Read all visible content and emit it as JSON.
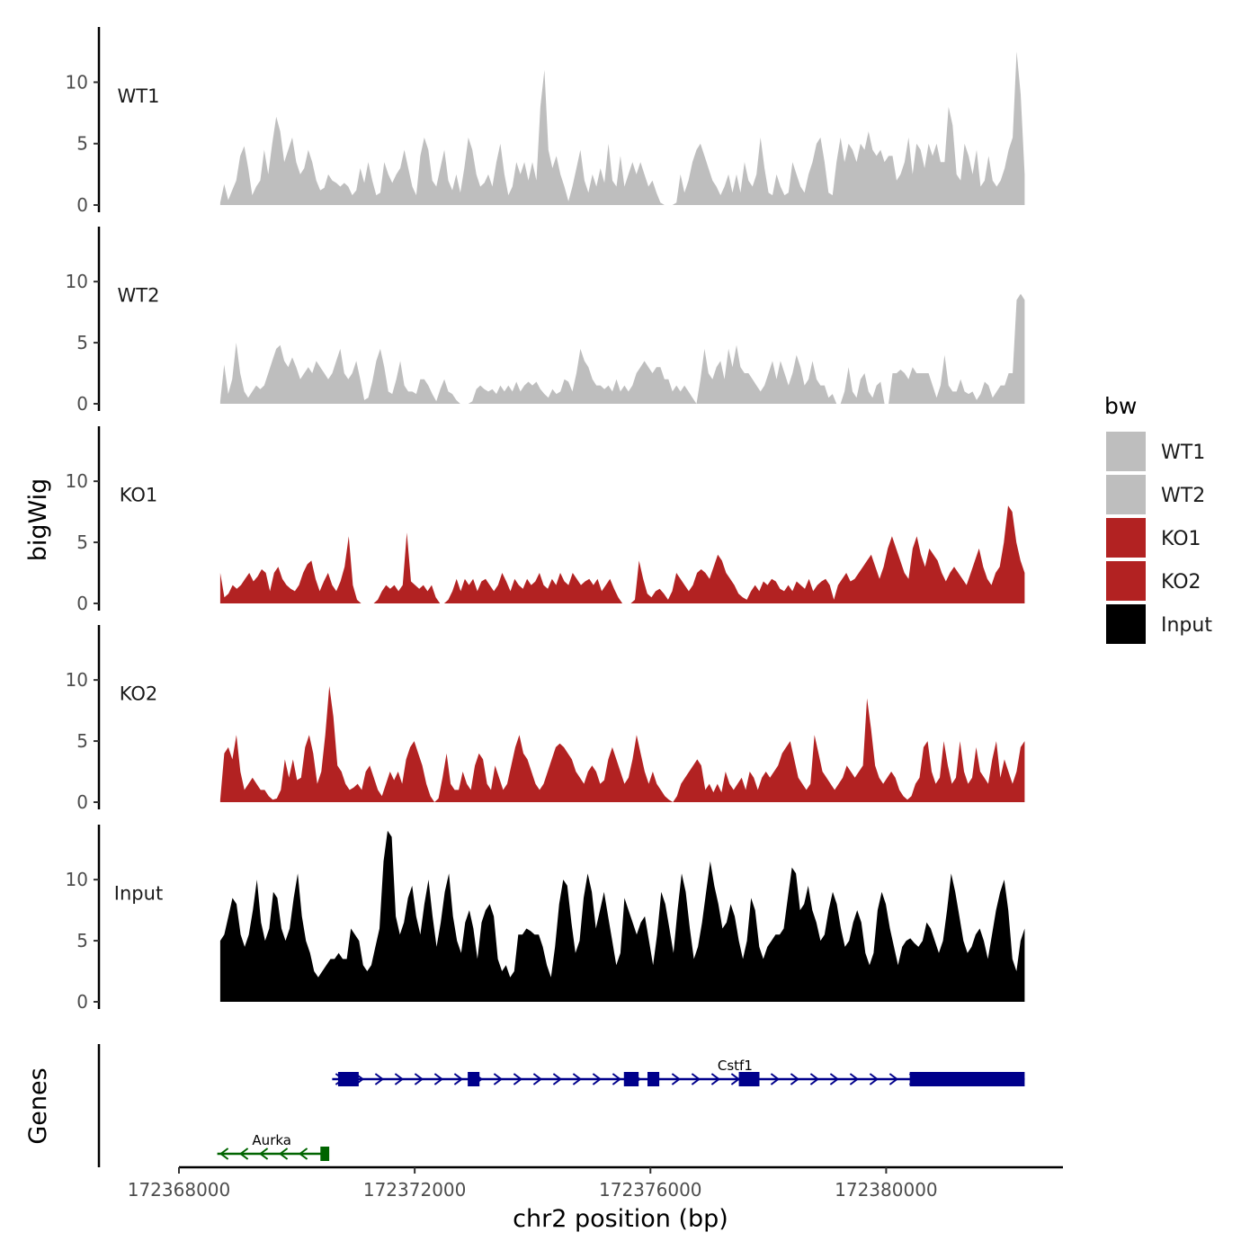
{
  "chart_data": {
    "type": "area",
    "ylabel": "bigWig",
    "xlabel": "chr2 position (bp)",
    "genes_label": "Genes",
    "xlim": [
      172368000,
      172383000
    ],
    "x_ticks": [
      172368000,
      172372000,
      172376000,
      172380000
    ],
    "x_tick_labels": [
      "172368000",
      "172372000",
      "172376000",
      "172380000"
    ],
    "ylim": [
      0,
      14.5
    ],
    "y_ticks": [
      0,
      5,
      10
    ],
    "y_tick_labels": [
      "0",
      "5",
      "10"
    ],
    "track_start": 172368700,
    "track_end": 172382350,
    "legend": {
      "title": "bw",
      "entries": [
        {
          "label": "WT1",
          "color": "#bebebe"
        },
        {
          "label": "WT2",
          "color": "#bebebe"
        },
        {
          "label": "KO1",
          "color": "#b22222"
        },
        {
          "label": "KO2",
          "color": "#b22222"
        },
        {
          "label": "Input",
          "color": "#000000"
        }
      ]
    },
    "series": [
      {
        "name": "WT1",
        "color": "#bebebe",
        "values": [
          0.2,
          1.7,
          0.4,
          1.2,
          2.0,
          4.0,
          4.8,
          3.0,
          0.8,
          1.5,
          2.0,
          4.5,
          2.5,
          5.0,
          7.2,
          6.0,
          3.5,
          4.5,
          5.5,
          3.5,
          2.5,
          3.0,
          4.5,
          3.5,
          2.0,
          1.2,
          1.4,
          2.5,
          2.0,
          1.8,
          1.5,
          1.8,
          1.5,
          0.8,
          1.2,
          3.0,
          1.8,
          3.5,
          2.0,
          0.8,
          1.0,
          3.5,
          2.5,
          1.8,
          2.5,
          3.0,
          4.5,
          3.0,
          1.5,
          0.8,
          4.0,
          5.5,
          4.5,
          2.0,
          1.5,
          3.0,
          4.5,
          2.0,
          1.2,
          2.5,
          1.0,
          3.0,
          5.5,
          4.5,
          2.5,
          1.5,
          1.8,
          2.5,
          1.5,
          3.5,
          5.0,
          2.5,
          0.8,
          1.5,
          3.5,
          2.5,
          3.5,
          2.0,
          3.5,
          2.0,
          8.0,
          11.0,
          4.5,
          3.0,
          4.0,
          2.5,
          1.5,
          0.3,
          1.5,
          3.0,
          4.5,
          2.0,
          1.0,
          2.5,
          1.5,
          3.0,
          1.8,
          5.0,
          2.0,
          1.5,
          4.0,
          1.5,
          2.5,
          3.5,
          2.5,
          3.5,
          2.5,
          1.5,
          2.0,
          1.0,
          0.2,
          0,
          0,
          0,
          0.2,
          2.5,
          1.0,
          2.0,
          3.5,
          4.5,
          5.0,
          4.0,
          3.0,
          2.0,
          1.5,
          0.8,
          1.5,
          2.5,
          1.0,
          2.5,
          1.0,
          3.5,
          2.0,
          1.5,
          2.5,
          5.5,
          3.0,
          1.0,
          0.8,
          2.5,
          1.5,
          0.8,
          1.0,
          3.5,
          2.5,
          1.5,
          1.0,
          2.5,
          3.5,
          5.0,
          5.5,
          3.5,
          1.0,
          0.8,
          3.5,
          5.5,
          3.5,
          5.0,
          4.5,
          3.5,
          5.0,
          4.5,
          6.0,
          4.5,
          4.0,
          4.5,
          3.5,
          4.0,
          4.0,
          2.0,
          2.5,
          3.5,
          5.5,
          2.5,
          5.0,
          4.5,
          3.0,
          5.0,
          4.0,
          5.0,
          3.5,
          3.5,
          8.0,
          6.5,
          2.5,
          2.0,
          5.0,
          4.0,
          2.5,
          4.5,
          1.5,
          2.0,
          4.0,
          2.0,
          1.5,
          2.0,
          3.0,
          4.5,
          5.5,
          12.5,
          9.0,
          2.5
        ]
      },
      {
        "name": "WT2",
        "color": "#bebebe",
        "values": [
          0.2,
          3.2,
          0.8,
          2.0,
          5.0,
          2.5,
          1.0,
          0.5,
          1.0,
          1.5,
          1.2,
          1.5,
          2.5,
          3.5,
          4.5,
          4.8,
          3.5,
          3.0,
          3.8,
          3.0,
          2.0,
          2.5,
          3.0,
          2.5,
          3.5,
          3.0,
          2.5,
          2.0,
          2.5,
          3.5,
          4.5,
          2.5,
          2.0,
          2.5,
          3.5,
          2.0,
          0.3,
          0.5,
          1.8,
          3.5,
          4.5,
          3.0,
          1.0,
          0.8,
          2.0,
          3.5,
          1.5,
          1.0,
          1.0,
          0.8,
          2.0,
          2.0,
          1.5,
          0.8,
          0.2,
          1.2,
          2.0,
          1.0,
          0.8,
          0.3,
          0,
          0,
          0,
          0.2,
          1.2,
          1.5,
          1.2,
          1.0,
          1.2,
          0.8,
          1.5,
          1.0,
          1.5,
          1.0,
          1.8,
          1.0,
          1.5,
          1.8,
          1.5,
          1.8,
          1.2,
          0.8,
          0.5,
          1.2,
          0.8,
          1.0,
          2.0,
          1.8,
          1.0,
          2.5,
          4.5,
          3.5,
          3.0,
          2.0,
          1.5,
          1.5,
          1.2,
          1.5,
          1.0,
          2.0,
          1.0,
          1.5,
          1.0,
          1.5,
          2.5,
          3.0,
          3.5,
          3.0,
          2.5,
          3.0,
          3.0,
          2.0,
          2.0,
          1.0,
          1.5,
          1.0,
          1.5,
          1.0,
          0.5,
          0,
          2.0,
          4.5,
          2.5,
          2.0,
          3.0,
          3.5,
          2.0,
          4.5,
          3.0,
          4.8,
          3.0,
          2.5,
          2.5,
          2.0,
          1.5,
          1.0,
          1.5,
          2.5,
          3.5,
          2.0,
          3.5,
          2.5,
          1.5,
          2.5,
          4.0,
          3.0,
          1.5,
          2.0,
          3.5,
          2.0,
          1.5,
          1.5,
          0.5,
          0.8,
          0,
          0,
          1.0,
          3.0,
          1.0,
          0.5,
          2.0,
          2.5,
          1.0,
          0.5,
          1.5,
          1.8,
          0,
          0,
          2.5,
          2.5,
          2.8,
          2.5,
          2.0,
          3.0,
          2.5,
          2.5,
          2.5,
          2.5,
          1.5,
          0.5,
          1.5,
          4.0,
          1.5,
          1.0,
          1.0,
          2.0,
          1.0,
          0.8,
          1.0,
          0.3,
          0.8,
          1.8,
          1.5,
          0.5,
          1.0,
          1.5,
          1.5,
          2.5,
          2.5,
          8.5,
          9.0,
          8.5
        ]
      },
      {
        "name": "KO1",
        "color": "#b22222",
        "values": [
          2.5,
          0.5,
          0.8,
          1.5,
          1.2,
          1.5,
          2.0,
          2.5,
          1.8,
          2.2,
          2.8,
          2.5,
          1.0,
          2.5,
          3.0,
          2.0,
          1.5,
          1.2,
          1.0,
          1.5,
          2.5,
          3.2,
          3.5,
          2.0,
          1.0,
          1.8,
          2.5,
          1.5,
          1.0,
          1.8,
          3.0,
          5.5,
          1.5,
          0.3,
          0,
          0,
          0,
          0,
          0.3,
          1.0,
          1.5,
          1.2,
          1.5,
          1.0,
          1.5,
          5.8,
          1.8,
          1.5,
          1.2,
          1.5,
          1.0,
          1.5,
          0.5,
          0,
          0,
          0.3,
          1.0,
          2.0,
          1.0,
          2.0,
          1.5,
          2.0,
          1.0,
          1.8,
          2.0,
          1.5,
          1.0,
          1.5,
          2.5,
          1.8,
          1.0,
          2.0,
          1.5,
          1.2,
          2.0,
          1.5,
          1.8,
          2.5,
          1.5,
          1.2,
          2.0,
          1.5,
          2.5,
          1.8,
          1.5,
          2.5,
          2.0,
          1.5,
          1.8,
          2.0,
          1.5,
          2.0,
          1.0,
          1.5,
          2.0,
          1.2,
          0.5,
          0,
          0,
          0,
          0.3,
          3.5,
          2.0,
          0.8,
          0.5,
          1.0,
          1.2,
          0.8,
          0.3,
          1.0,
          2.5,
          2.0,
          1.5,
          1.0,
          1.5,
          2.5,
          2.8,
          2.5,
          2.0,
          3.0,
          4.0,
          3.5,
          2.5,
          2.0,
          1.5,
          0.8,
          0.5,
          0.3,
          1.0,
          1.5,
          1.0,
          1.8,
          1.5,
          2.0,
          1.8,
          1.2,
          1.0,
          1.5,
          1.0,
          1.8,
          1.5,
          1.2,
          2.0,
          1.0,
          1.5,
          1.8,
          2.0,
          1.5,
          0.3,
          1.5,
          2.0,
          2.5,
          1.8,
          2.0,
          2.5,
          3.0,
          3.5,
          4.0,
          3.0,
          2.0,
          3.0,
          4.5,
          5.5,
          4.5,
          3.5,
          2.5,
          2.0,
          4.5,
          5.5,
          4.0,
          3.0,
          4.5,
          4.0,
          3.5,
          2.5,
          1.8,
          2.5,
          3.0,
          2.5,
          2.0,
          1.5,
          2.5,
          3.5,
          4.5,
          3.0,
          2.0,
          1.5,
          2.5,
          3.0,
          5.0,
          8.0,
          7.5,
          5.0,
          3.5,
          2.5
        ]
      },
      {
        "name": "KO2",
        "color": "#b22222",
        "values": [
          0.2,
          4.0,
          4.5,
          3.5,
          5.5,
          2.5,
          1.0,
          1.5,
          2.0,
          1.5,
          1.0,
          1.0,
          0.5,
          0.2,
          0.3,
          1.0,
          3.5,
          2.0,
          3.5,
          1.8,
          2.0,
          4.5,
          5.5,
          4.0,
          1.5,
          2.5,
          5.5,
          9.5,
          7.0,
          3.0,
          2.5,
          1.5,
          1.0,
          1.2,
          1.5,
          1.0,
          2.5,
          3.0,
          2.0,
          1.0,
          0.5,
          1.5,
          2.5,
          1.8,
          2.5,
          1.5,
          3.5,
          4.5,
          5.0,
          4.0,
          3.0,
          1.5,
          0.5,
          0,
          0.3,
          2.0,
          4.0,
          1.5,
          1.0,
          1.0,
          2.5,
          1.5,
          1.0,
          3.0,
          4.0,
          3.5,
          1.5,
          1.0,
          3.0,
          2.0,
          1.0,
          1.5,
          3.0,
          4.5,
          5.5,
          4.0,
          3.5,
          2.5,
          1.5,
          1.0,
          1.5,
          2.5,
          3.5,
          4.5,
          4.8,
          4.5,
          4.0,
          3.5,
          2.5,
          2.0,
          1.5,
          2.5,
          3.0,
          2.5,
          1.5,
          1.8,
          3.5,
          4.5,
          3.5,
          2.5,
          1.5,
          2.0,
          3.5,
          5.5,
          4.0,
          2.5,
          1.5,
          2.5,
          1.5,
          1.0,
          0.5,
          0.2,
          0,
          0.5,
          1.5,
          2.0,
          2.5,
          3.0,
          3.5,
          3.0,
          1.0,
          1.5,
          0.8,
          1.5,
          0.8,
          2.5,
          1.5,
          1.0,
          1.5,
          2.0,
          1.0,
          2.5,
          2.0,
          1.0,
          2.0,
          2.5,
          2.0,
          2.5,
          3.0,
          4.0,
          4.5,
          5.0,
          3.5,
          2.0,
          1.5,
          1.0,
          1.5,
          5.5,
          4.0,
          2.5,
          2.0,
          1.5,
          1.0,
          1.5,
          2.0,
          3.0,
          2.5,
          2.0,
          2.5,
          3.0,
          8.5,
          6.0,
          3.0,
          2.0,
          1.5,
          2.0,
          2.5,
          2.0,
          1.0,
          0.5,
          0.2,
          0.5,
          1.5,
          2.0,
          4.5,
          5.0,
          2.5,
          1.5,
          2.0,
          5.0,
          3.0,
          1.5,
          2.0,
          5.0,
          2.5,
          1.5,
          2.0,
          4.5,
          2.5,
          2.0,
          1.5,
          3.5,
          5.0,
          2.0,
          3.5,
          2.5,
          1.5,
          2.5,
          4.5,
          5.0
        ]
      },
      {
        "name": "Input",
        "color": "#000000",
        "values": [
          5.0,
          5.5,
          7.0,
          8.5,
          8.0,
          5.5,
          4.5,
          5.5,
          7.5,
          10.0,
          6.5,
          5.0,
          6.0,
          9.0,
          8.5,
          6.0,
          5.0,
          6.0,
          8.5,
          10.5,
          7.0,
          5.0,
          4.0,
          2.5,
          2.0,
          2.5,
          3.0,
          3.5,
          3.5,
          4.0,
          3.5,
          3.5,
          6.0,
          5.5,
          5.0,
          3.0,
          2.5,
          3.0,
          4.5,
          6.0,
          11.5,
          14.0,
          13.5,
          7.0,
          5.5,
          6.5,
          8.5,
          9.5,
          7.0,
          5.5,
          8.0,
          10.0,
          7.0,
          4.5,
          6.5,
          9.0,
          10.5,
          7.0,
          5.0,
          4.0,
          6.5,
          7.5,
          6.0,
          3.5,
          6.5,
          7.5,
          8.0,
          7.0,
          3.5,
          2.5,
          3.0,
          2.0,
          2.5,
          5.5,
          5.5,
          6.0,
          5.8,
          5.5,
          5.5,
          4.5,
          3.0,
          2.0,
          4.5,
          8.0,
          10.0,
          9.5,
          6.5,
          4.0,
          5.0,
          8.5,
          10.5,
          9.0,
          6.0,
          7.5,
          9.0,
          7.0,
          5.0,
          3.0,
          4.0,
          8.5,
          7.5,
          6.5,
          5.5,
          6.5,
          7.0,
          5.0,
          3.0,
          5.5,
          9.0,
          8.0,
          6.0,
          4.0,
          7.5,
          10.5,
          9.0,
          6.0,
          3.5,
          4.5,
          6.5,
          9.0,
          11.5,
          9.5,
          8.0,
          6.0,
          6.5,
          8.0,
          7.0,
          5.0,
          3.5,
          5.0,
          8.5,
          7.5,
          4.5,
          3.5,
          4.5,
          5.0,
          5.5,
          5.5,
          6.0,
          8.5,
          11.0,
          10.5,
          7.5,
          8.0,
          9.5,
          7.5,
          6.5,
          5.0,
          5.5,
          7.5,
          9.0,
          8.0,
          6.0,
          4.5,
          5.0,
          6.5,
          7.5,
          6.5,
          4.0,
          3.0,
          4.0,
          7.5,
          9.0,
          8.0,
          6.0,
          4.5,
          3.0,
          4.5,
          5.0,
          5.2,
          4.8,
          4.5,
          5.0,
          6.5,
          6.0,
          5.0,
          4.0,
          5.0,
          7.5,
          10.5,
          9.0,
          7.0,
          5.0,
          4.0,
          4.5,
          5.5,
          6.0,
          5.0,
          3.5,
          5.5,
          7.5,
          9.0,
          10.0,
          7.5,
          3.5,
          2.5,
          5.0,
          6.0
        ]
      }
    ],
    "genes": [
      {
        "name": "Cstf1",
        "color": "#00008b",
        "strand": "+",
        "start": 172370600,
        "end": 172382350,
        "exons": [
          [
            172370700,
            172371050
          ],
          [
            172372900,
            172373100
          ],
          [
            172375550,
            172375800
          ],
          [
            172375950,
            172376150
          ],
          [
            172377500,
            172377850
          ],
          [
            172380400,
            172382350
          ]
        ]
      },
      {
        "name": "Aurka",
        "color": "#006400",
        "strand": "-",
        "start": 172368650,
        "end": 172370500,
        "exons": [
          [
            172370400,
            172370550
          ]
        ]
      }
    ]
  }
}
